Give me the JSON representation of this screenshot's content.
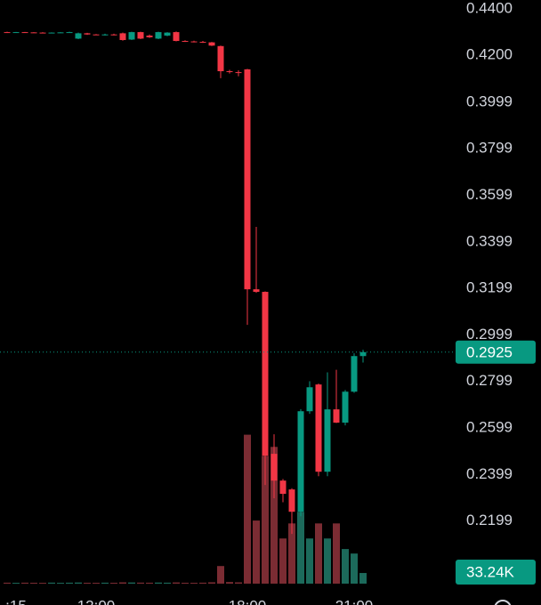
{
  "chart_data": {
    "type": "candlestick",
    "categories": [
      null,
      ":15",
      null,
      null,
      null,
      null,
      null,
      null,
      null,
      null,
      "12:00",
      null,
      null,
      null,
      null,
      null,
      null,
      null,
      null,
      null,
      null,
      null,
      null,
      null,
      null,
      null,
      null,
      "18:00",
      null,
      null,
      null,
      null,
      null,
      null,
      null,
      null,
      null,
      null,
      null,
      "21:00",
      null
    ],
    "open": [
      0.43,
      0.4299,
      0.43,
      0.4299,
      0.4298,
      0.4297,
      0.4298,
      0.4299,
      0.4272,
      0.4295,
      0.429,
      0.4289,
      0.429,
      0.4295,
      0.4268,
      0.43,
      0.4285,
      0.4272,
      0.4285,
      0.43,
      0.4262,
      0.426,
      0.4258,
      0.4256,
      0.424,
      0.4132,
      0.4128,
      0.414,
      0.3195,
      0.3184,
      0.2488,
      0.2373,
      0.2335,
      0.2239,
      0.2671,
      0.2786,
      0.2411,
      0.2679,
      0.2622,
      0.2755,
      0.2908
    ],
    "high": [
      0.4302,
      0.4301,
      0.4301,
      0.43,
      0.43,
      0.4299,
      0.43,
      0.4302,
      0.4298,
      0.4297,
      0.4292,
      0.4293,
      0.4293,
      0.4298,
      0.4302,
      0.4302,
      0.429,
      0.4302,
      0.43,
      0.4303,
      0.4265,
      0.4263,
      0.4262,
      0.4258,
      0.4242,
      0.4138,
      0.4136,
      0.4142,
      0.3463,
      0.3186,
      0.2572,
      0.238,
      0.234,
      0.268,
      0.28,
      0.279,
      0.2838,
      0.2849,
      0.2762,
      0.292,
      0.2935
    ],
    "low": [
      0.4298,
      0.4297,
      0.4298,
      0.4297,
      0.4296,
      0.4295,
      0.4296,
      0.4297,
      0.427,
      0.4288,
      0.4288,
      0.4285,
      0.4286,
      0.4263,
      0.4266,
      0.427,
      0.4275,
      0.427,
      0.4282,
      0.426,
      0.4258,
      0.4256,
      0.4254,
      0.424,
      0.4102,
      0.4122,
      0.411,
      0.3042,
      0.318,
      0.2354,
      0.2297,
      0.228,
      0.2144,
      0.222,
      0.266,
      0.2392,
      0.2392,
      0.262,
      0.261,
      0.275,
      0.288
    ],
    "close": [
      0.4299,
      0.43,
      0.4299,
      0.4298,
      0.4297,
      0.4298,
      0.4299,
      0.43,
      0.4295,
      0.429,
      0.4289,
      0.429,
      0.4288,
      0.4266,
      0.43,
      0.4272,
      0.4278,
      0.43,
      0.4298,
      0.4262,
      0.426,
      0.4258,
      0.4256,
      0.4242,
      0.4132,
      0.413,
      0.4126,
      0.3195,
      0.3184,
      0.248,
      0.2373,
      0.2316,
      0.2239,
      0.2671,
      0.2774,
      0.2411,
      0.2679,
      0.2622,
      0.2755,
      0.2908,
      0.2925
    ],
    "volume": [
      3000,
      2500,
      3000,
      2800,
      2500,
      3200,
      2600,
      3000,
      3500,
      2800,
      2600,
      3000,
      2700,
      4000,
      3600,
      3200,
      2900,
      3400,
      3000,
      3800,
      2800,
      2600,
      3000,
      4200,
      55000,
      5000,
      4000,
      465000,
      197000,
      399000,
      427000,
      141000,
      188000,
      224000,
      141000,
      188000,
      141000,
      188000,
      108000,
      94000,
      33240
    ],
    "last_volume_label": "33.24K",
    "ylim": [
      0.1934,
      0.4438
    ],
    "yticks": [
      {
        "value": 0.44,
        "label": "0.4400"
      },
      {
        "value": 0.42,
        "label": "0.4200"
      },
      0.3999,
      0.3799,
      0.3599,
      0.3399,
      0.3199,
      0.2999,
      0.2799,
      0.2599,
      0.2399,
      0.2199
    ],
    "volume_ylim": [
      0,
      600000
    ],
    "up_color": "#089981",
    "down_color": "#f23645",
    "up_volume_color": "#1c6a5b",
    "down_volume_color": "#7b2c33"
  }
}
